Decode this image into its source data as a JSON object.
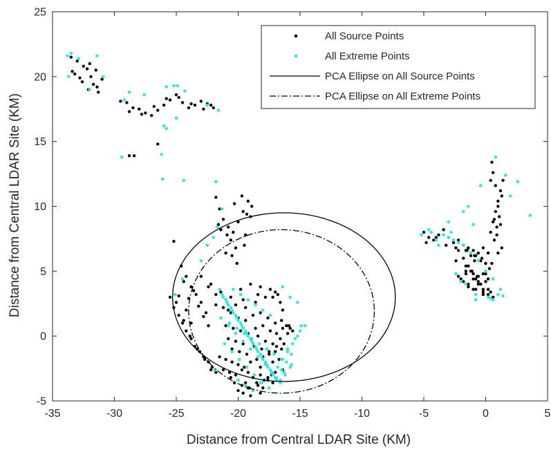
{
  "chart_data": {
    "type": "scatter",
    "xlabel": "Distance from Central LDAR Site (KM)",
    "ylabel": "Distance from Central LDAR Site (KM)",
    "xlim": [
      -35,
      5
    ],
    "ylim": [
      -5,
      25
    ],
    "xticks": [
      -35,
      -30,
      -25,
      -20,
      -15,
      -10,
      -5,
      0,
      5
    ],
    "yticks": [
      -5,
      0,
      5,
      10,
      15,
      20,
      25
    ],
    "grid": false,
    "legend_position": "top-right",
    "colors": {
      "source": "#000000",
      "extreme": "#33e6e6",
      "axes": "#262626"
    },
    "legend": [
      {
        "label": "All Source Points",
        "marker": "dot",
        "color": "#000000"
      },
      {
        "label": "All Extreme Points",
        "marker": "dot",
        "color": "#33e6e6"
      },
      {
        "label": "PCA Ellipse on All Source Points",
        "marker": "solid-line",
        "color": "#000000"
      },
      {
        "label": "PCA Ellipse on All Extreme Points",
        "marker": "dashdot-line",
        "color": "#000000"
      }
    ],
    "ellipses": [
      {
        "name": "PCA Ellipse on All Source Points",
        "cx": -16.3,
        "cy": 3.0,
        "rx": 9.0,
        "ry": 6.5,
        "style": "solid"
      },
      {
        "name": "PCA Ellipse on All Extreme Points",
        "cx": -16.5,
        "cy": 1.9,
        "rx": 7.5,
        "ry": 6.3,
        "style": "dashdot"
      }
    ],
    "series": [
      {
        "name": "All Source Points",
        "color": "#000000",
        "x": [
          -33.5,
          -33,
          -32.5,
          -32,
          -31.5,
          -31,
          -33.2,
          -32.8,
          -32.2,
          -31.7,
          -31.3,
          -32.6,
          -31.9,
          -31.4,
          -33.4,
          -32.1,
          -29.5,
          -29,
          -28.5,
          -28,
          -27.5,
          -27,
          -26.5,
          -26,
          -25.5,
          -25,
          -24.5,
          -24,
          -23.5,
          -23,
          -22.5,
          -22,
          -28.8,
          -27.8,
          -26.8,
          -25.8,
          -24.8,
          -23.8,
          -22.8,
          -22.2,
          -28.8,
          -28.4,
          -26.5,
          -25.2,
          -24.6,
          -24.2,
          -23.8,
          -23.4,
          -23.0,
          -22.6,
          -24.4,
          -23.6,
          -24.0,
          -23.2,
          -22.8,
          -22.4,
          -24.8,
          -24.2,
          -23.8,
          -21.8,
          -21.5,
          -21.2,
          -20.8,
          -20.4,
          -20.0,
          -19.6,
          -19.2,
          -21.4,
          -20.6,
          -20.2,
          -19.4,
          -19.0,
          -21.6,
          -20.9,
          -20.3,
          -19.7,
          -19.3,
          -18.9,
          -20.5,
          -20.1,
          -19.5,
          -21.0,
          -23.0,
          -22.4,
          -21.8,
          -21.0,
          -20.2,
          -19.4,
          -18.6,
          -17.8,
          -17.0,
          -16.6,
          -16.4,
          -22.2,
          -21.4,
          -20.6,
          -19.8,
          -19.0,
          -18.2,
          -17.4,
          -16.8,
          -21.8,
          -20.8,
          -19.6,
          -18.4,
          -17.2,
          -21.2,
          -20.6,
          -20.0,
          -19.4,
          -18.8,
          -18.2,
          -17.6,
          -17.0,
          -16.5,
          -16.1,
          -15.8,
          -21.0,
          -20.4,
          -19.8,
          -19.2,
          -18.6,
          -18.0,
          -17.4,
          -16.9,
          -16.4,
          -15.9,
          -20.8,
          -20.2,
          -19.6,
          -19.0,
          -18.4,
          -17.8,
          -17.2,
          -16.6,
          -16.0,
          -15.6,
          -20.5,
          -19.9,
          -19.3,
          -18.7,
          -18.1,
          -17.5,
          -16.9,
          -16.3,
          -21.5,
          -21.0,
          -20.5,
          -20.0,
          -19.5,
          -19.0,
          -18.5,
          -18.0,
          -17.5,
          -17.0,
          -16.5,
          -21.2,
          -20.7,
          -20.2,
          -19.7,
          -19.2,
          -18.7,
          -18.2,
          -17.7,
          -17.2,
          -16.7,
          -20.6,
          -20.0,
          -19.4,
          -18.8,
          -18.2,
          -17.6,
          -17.0,
          -16.4,
          -20.3,
          -19.7,
          -19.1,
          -18.5,
          -17.9,
          -17.3,
          -20.0,
          -19.2,
          -18.4,
          -17.6,
          -19.6,
          -18.8,
          -18.0,
          -17.2,
          -19.0,
          -18.2,
          -25.5,
          -25.2,
          -24.8,
          -24.5,
          -24.2,
          -23.8,
          -23.5,
          -23.1,
          -22.8,
          -22.4,
          -22.1,
          -21.8,
          -25.0,
          -24.4,
          -23.9,
          -23.3,
          -22.7,
          -22.2,
          -5.0,
          -4.6,
          -4.2,
          -3.8,
          -3.4,
          -3.0,
          -2.6,
          -2.2,
          -1.8,
          -1.4,
          -1.0,
          -0.6,
          -0.2,
          0.2,
          -4.8,
          -4.0,
          -3.2,
          -2.4,
          -1.6,
          -0.8,
          -1.8,
          -1.5,
          -1.2,
          -0.9,
          -0.6,
          -0.3,
          0.0,
          0.3,
          -1.6,
          -1.1,
          -0.7,
          -0.2,
          0.2,
          -1.4,
          -0.9,
          -0.4,
          -2.2,
          -1.8,
          -1.4,
          -1.0,
          -0.6,
          -0.2,
          0.2,
          0.6,
          -2.0,
          -1.4,
          -0.8,
          -0.2,
          0.4,
          -1.6,
          -1.0,
          -0.4,
          0.2,
          -1.2,
          -0.6,
          0.0,
          0.4,
          0.6,
          0.8,
          1.0,
          1.2,
          1.4,
          0.7,
          0.9,
          1.1,
          1.3,
          0.5,
          0.8,
          1.0,
          0.6,
          0.4,
          0.7,
          1.2,
          0.9,
          -2.6,
          -2.2,
          -1.8,
          -1.4,
          -1.0,
          -0.6,
          -0.2,
          -2.4,
          -1.6,
          -0.8,
          0.0,
          0.5,
          1.0,
          1.3
        ],
        "y": [
          21.5,
          21.2,
          20.8,
          21.0,
          20.5,
          19.8,
          20.2,
          19.9,
          20.6,
          19.4,
          18.8,
          19.6,
          20.0,
          19.2,
          20.4,
          19.0,
          18.1,
          18.0,
          17.6,
          17.5,
          17.2,
          17.0,
          17.4,
          17.8,
          18.2,
          18.6,
          18.0,
          17.6,
          17.8,
          18.1,
          17.9,
          17.6,
          17.3,
          17.1,
          17.7,
          18.3,
          18.4,
          17.9,
          17.5,
          17.8,
          13.9,
          13.9,
          14.8,
          7.3,
          5.4,
          4.6,
          3.8,
          3.2,
          2.6,
          1.8,
          4.2,
          3.5,
          2.9,
          2.3,
          1.5,
          0.8,
          3.1,
          2.0,
          1.0,
          10.7,
          9.8,
          9.0,
          8.4,
          8.0,
          8.8,
          9.6,
          10.4,
          8.2,
          7.4,
          6.8,
          7.8,
          9.2,
          8.6,
          7.8,
          10.2,
          10.8,
          9.4,
          10.0,
          6.2,
          5.6,
          7.0,
          6.4,
          4.6,
          3.8,
          3.2,
          2.8,
          2.4,
          2.2,
          2.6,
          3.0,
          3.4,
          2.6,
          2.0,
          4.0,
          3.4,
          3.0,
          3.6,
          4.0,
          3.8,
          3.6,
          3.2,
          2.4,
          2.0,
          2.8,
          3.2,
          3.0,
          2.2,
          1.8,
          1.4,
          1.2,
          1.6,
          1.8,
          1.4,
          1.0,
          1.2,
          0.8,
          0.6,
          0.8,
          0.6,
          0.4,
          0.2,
          0.6,
          0.8,
          0.4,
          0.2,
          0.6,
          0.8,
          -0.2,
          -0.4,
          -0.6,
          -0.2,
          0.0,
          -0.4,
          -0.6,
          -0.2,
          0.2,
          0.4,
          -1.0,
          -1.2,
          -1.4,
          -0.8,
          -1.0,
          -1.2,
          -0.8,
          -0.6,
          -1.6,
          -1.8,
          -2.0,
          -2.2,
          -2.4,
          -2.0,
          -1.8,
          -1.6,
          -1.4,
          -1.2,
          -1.0,
          -2.6,
          -2.8,
          -3.0,
          -2.6,
          -2.8,
          -3.0,
          -2.4,
          -2.2,
          -2.0,
          -1.8,
          -3.2,
          -3.4,
          -3.6,
          -3.2,
          -3.0,
          -3.2,
          -2.8,
          -2.6,
          -3.6,
          -3.8,
          -4.0,
          -3.6,
          -3.4,
          -3.0,
          -4.2,
          -4.0,
          -3.8,
          -3.4,
          -4.4,
          -4.2,
          -4.0,
          -3.6,
          -4.6,
          -4.4,
          3.0,
          2.2,
          1.6,
          1.0,
          0.4,
          -0.2,
          -0.8,
          -1.2,
          -1.6,
          -2.0,
          -2.4,
          -2.8,
          2.6,
          1.2,
          0.0,
          -1.0,
          -1.8,
          -2.6,
          8.0,
          7.6,
          7.4,
          7.8,
          8.2,
          7.6,
          7.2,
          7.4,
          7.0,
          6.8,
          6.6,
          6.4,
          6.8,
          6.4,
          7.2,
          7.6,
          7.0,
          6.8,
          6.6,
          6.2,
          7.0,
          6.6,
          6.2,
          5.8,
          6.4,
          6.0,
          5.6,
          5.2,
          5.4,
          5.0,
          4.6,
          4.8,
          4.4,
          6.8,
          6.2,
          5.8,
          4.6,
          4.2,
          3.8,
          3.6,
          4.0,
          3.4,
          3.2,
          3.0,
          4.4,
          4.0,
          3.6,
          3.2,
          3.4,
          4.8,
          4.4,
          4.0,
          3.6,
          5.0,
          4.6,
          4.2,
          8.0,
          8.8,
          9.6,
          10.4,
          11.2,
          12.0,
          7.4,
          8.4,
          9.2,
          10.8,
          13.4,
          11.6,
          10.0,
          12.6,
          12.0,
          9.0,
          8.6,
          7.8,
          7.2,
          6.6,
          6.0,
          5.4,
          4.8,
          4.2,
          3.6,
          5.8,
          5.0,
          4.4,
          4.8,
          5.6,
          6.4,
          6.8
        ]
      },
      {
        "name": "All Extreme Points",
        "color": "#33e6e6",
        "x": [
          -33.8,
          -33.5,
          -32.9,
          -31.4,
          -30.9,
          -32.0,
          -33.7,
          -29.2,
          -28.8,
          -27.6,
          -25.8,
          -25.2,
          -24.9,
          -24.3,
          -22.5,
          -21.6,
          -26.0,
          -29.4,
          -26.1,
          -25.8,
          -24.4,
          -25.0,
          -21.8,
          -26.2,
          -21.5,
          -21.2,
          -20.8,
          -20.4,
          -20.0,
          -19.6,
          -19.2,
          -18.8,
          -18.4,
          -18.0,
          -17.6,
          -17.2,
          -16.8,
          -16.4,
          -16.0,
          -15.6,
          -15.2,
          -21.3,
          -20.9,
          -20.5,
          -20.1,
          -19.7,
          -19.3,
          -18.9,
          -18.5,
          -18.1,
          -17.7,
          -17.3,
          -16.9,
          -16.5,
          -16.1,
          -15.7,
          -21.0,
          -20.6,
          -20.2,
          -19.8,
          -19.4,
          -19.0,
          -18.6,
          -18.2,
          -17.8,
          -17.4,
          -17.0,
          -16.6,
          -16.2,
          -15.8,
          -21.4,
          -20.8,
          -20.2,
          -19.6,
          -19.0,
          -18.4,
          -17.8,
          -17.2,
          -16.6,
          -16.0,
          -15.4,
          -15.0,
          -14.6,
          -21.1,
          -20.5,
          -19.9,
          -19.3,
          -18.7,
          -18.1,
          -17.5,
          -16.9,
          -16.3,
          -15.7,
          -20.7,
          -20.1,
          -19.5,
          -18.9,
          -18.3,
          -17.7,
          -17.1,
          -16.5,
          -20.4,
          -19.8,
          -19.2,
          -18.6,
          -18.0,
          -17.4,
          -20.0,
          -19.4,
          -18.8,
          -18.2,
          -22.0,
          -21.7,
          -21.3,
          -22.5,
          -23.0,
          -24.5,
          -25.1,
          -21.9,
          -16.4,
          -15.8,
          -15.2,
          -14.9,
          -5.2,
          -4.6,
          -4.0,
          -3.4,
          -2.8,
          -2.2,
          -3.8,
          -2.6,
          -4.4,
          -3.0,
          -1.8,
          -1.2,
          -0.6,
          0.0,
          0.6,
          1.2,
          -1.4,
          -0.4,
          0.8,
          1.6,
          2.0,
          2.6,
          3.6,
          -2.0,
          1.0,
          0.4,
          -0.8,
          -2.4,
          -1.6,
          -0.8,
          0.2,
          1.4,
          0.6,
          -1.0,
          -1.8,
          -3.0
        ],
        "y": [
          21.6,
          21.8,
          21.4,
          21.6,
          20.0,
          19.0,
          20.0,
          18.2,
          18.8,
          18.6,
          19.2,
          19.3,
          19.3,
          18.9,
          17.8,
          17.4,
          16.2,
          13.8,
          12.1,
          16.0,
          12.0,
          16.8,
          11.9,
          14.0,
          3.6,
          3.0,
          2.4,
          1.8,
          1.2,
          0.6,
          0.0,
          -0.6,
          -1.2,
          -1.8,
          -2.4,
          -3.0,
          -2.4,
          -1.8,
          -1.2,
          -0.6,
          0.0,
          3.2,
          2.6,
          2.0,
          1.4,
          0.8,
          0.2,
          -0.4,
          -1.0,
          -1.6,
          -2.2,
          -2.8,
          -3.2,
          -2.6,
          -2.0,
          -1.4,
          2.8,
          2.2,
          1.6,
          1.0,
          0.4,
          -0.2,
          -0.8,
          -1.4,
          -2.0,
          -2.6,
          -3.2,
          -3.6,
          -3.0,
          -2.4,
          1.4,
          0.8,
          0.2,
          -0.4,
          -1.0,
          -1.6,
          -2.2,
          -2.8,
          -3.4,
          -1.0,
          -0.2,
          0.4,
          0.8,
          -0.6,
          -1.2,
          -1.8,
          -2.4,
          -3.0,
          -3.6,
          -4.0,
          -3.4,
          -2.8,
          -2.2,
          1.0,
          0.6,
          0.2,
          -0.2,
          -0.6,
          -1.0,
          -1.4,
          -1.8,
          3.6,
          3.2,
          2.8,
          2.4,
          2.0,
          1.6,
          -3.4,
          -3.8,
          -4.2,
          -3.6,
          7.6,
          8.4,
          9.8,
          7.0,
          5.8,
          4.4,
          3.2,
          -2.6,
          3.8,
          3.0,
          2.6,
          0.8,
          7.8,
          8.2,
          7.4,
          7.8,
          8.0,
          7.2,
          7.0,
          7.4,
          8.0,
          7.6,
          7.0,
          6.4,
          5.8,
          5.0,
          4.4,
          3.6,
          10.0,
          11.6,
          13.8,
          12.4,
          10.8,
          11.9,
          9.3,
          4.2,
          3.2,
          2.9,
          2.8,
          4.8,
          4.0,
          3.2,
          3.0,
          3.1,
          2.8,
          8.6,
          9.6,
          8.8
        ]
      }
    ]
  }
}
